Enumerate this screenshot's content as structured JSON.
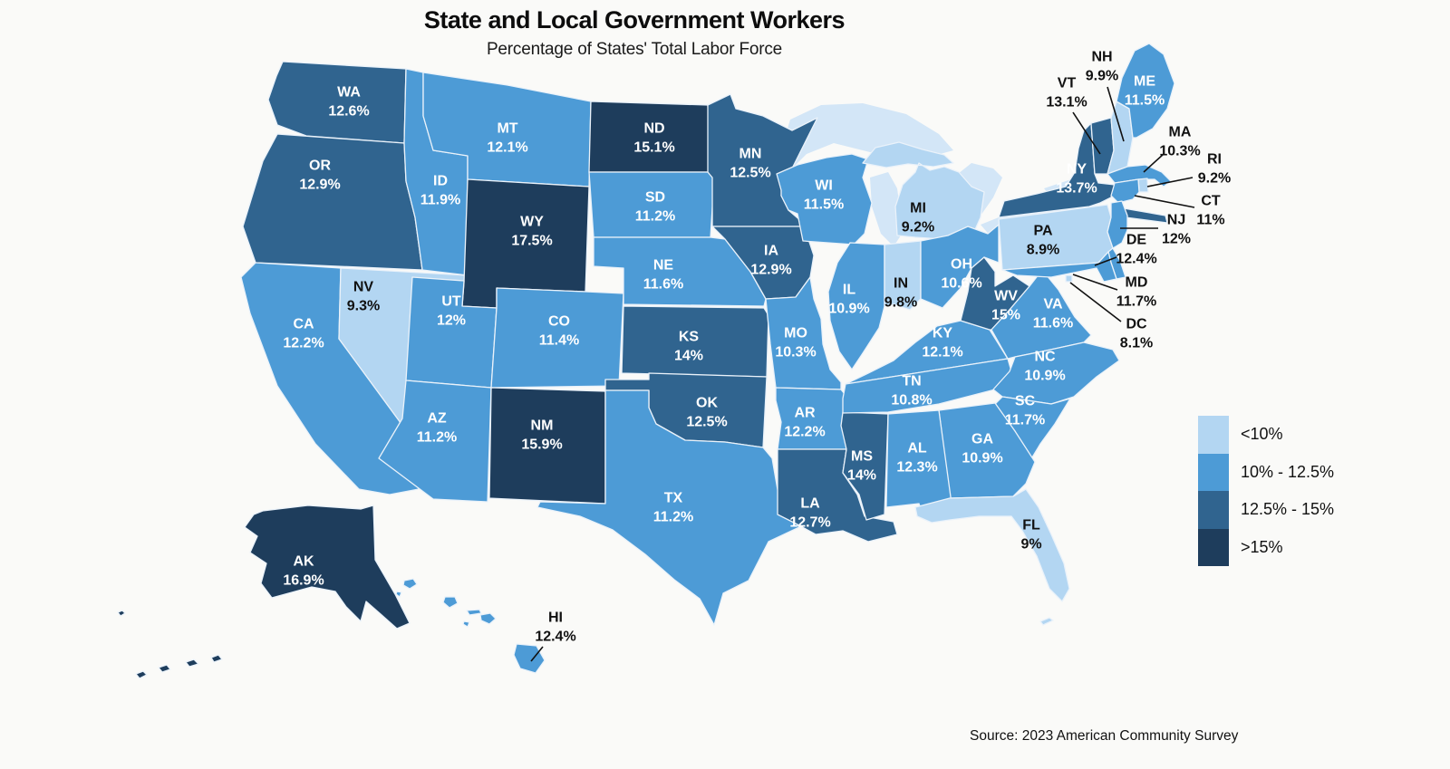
{
  "title": "State and Local Government Workers",
  "subtitle": "Percentage of States' Total Labor Force",
  "source": "Source: 2023 American Community Survey",
  "colors": {
    "background": "#FAFAF8",
    "state_border": "#EAF2FA",
    "lake": "#D3E6F7",
    "label_light": "#FFFFFF",
    "label_dark": "#111111",
    "leader_line": "#111111"
  },
  "legend": {
    "items": [
      {
        "label": "<10%",
        "color": "#B3D6F2"
      },
      {
        "label": "10% - 12.5%",
        "color": "#4D9BD6"
      },
      {
        "label": "12.5% - 15%",
        "color": "#30648F"
      },
      {
        "label": ">15%",
        "color": "#1E3D5C"
      }
    ]
  },
  "chart_data": {
    "type": "choropleth-map",
    "region": "United States",
    "value_unit": "percent of state total labor force",
    "bucket_labels": [
      "<10%",
      "10% - 12.5%",
      "12.5% - 15%",
      ">15%"
    ],
    "states": [
      {
        "code": "WA",
        "value": "12.6%",
        "bucket": 2
      },
      {
        "code": "OR",
        "value": "12.9%",
        "bucket": 2
      },
      {
        "code": "CA",
        "value": "12.2%",
        "bucket": 1
      },
      {
        "code": "NV",
        "value": "9.3%",
        "bucket": 0
      },
      {
        "code": "ID",
        "value": "11.9%",
        "bucket": 1
      },
      {
        "code": "MT",
        "value": "12.1%",
        "bucket": 1
      },
      {
        "code": "WY",
        "value": "17.5%",
        "bucket": 3
      },
      {
        "code": "UT",
        "value": "12%",
        "bucket": 1
      },
      {
        "code": "CO",
        "value": "11.4%",
        "bucket": 1
      },
      {
        "code": "AZ",
        "value": "11.2%",
        "bucket": 1
      },
      {
        "code": "NM",
        "value": "15.9%",
        "bucket": 3
      },
      {
        "code": "ND",
        "value": "15.1%",
        "bucket": 3
      },
      {
        "code": "SD",
        "value": "11.2%",
        "bucket": 1
      },
      {
        "code": "NE",
        "value": "11.6%",
        "bucket": 1
      },
      {
        "code": "KS",
        "value": "14%",
        "bucket": 2
      },
      {
        "code": "OK",
        "value": "12.5%",
        "bucket": 2
      },
      {
        "code": "TX",
        "value": "11.2%",
        "bucket": 1
      },
      {
        "code": "MN",
        "value": "12.5%",
        "bucket": 2
      },
      {
        "code": "IA",
        "value": "12.9%",
        "bucket": 2
      },
      {
        "code": "MO",
        "value": "10.3%",
        "bucket": 1
      },
      {
        "code": "AR",
        "value": "12.2%",
        "bucket": 1
      },
      {
        "code": "LA",
        "value": "12.7%",
        "bucket": 2
      },
      {
        "code": "WI",
        "value": "11.5%",
        "bucket": 1
      },
      {
        "code": "IL",
        "value": "10.9%",
        "bucket": 1
      },
      {
        "code": "MS",
        "value": "14%",
        "bucket": 2
      },
      {
        "code": "MI",
        "value": "9.2%",
        "bucket": 0
      },
      {
        "code": "IN",
        "value": "9.8%",
        "bucket": 0
      },
      {
        "code": "OH",
        "value": "10.6%",
        "bucket": 1
      },
      {
        "code": "KY",
        "value": "12.1%",
        "bucket": 1
      },
      {
        "code": "TN",
        "value": "10.8%",
        "bucket": 1
      },
      {
        "code": "WV",
        "value": "15%",
        "bucket": 2
      },
      {
        "code": "VA",
        "value": "11.6%",
        "bucket": 1
      },
      {
        "code": "NC",
        "value": "10.9%",
        "bucket": 1
      },
      {
        "code": "SC",
        "value": "11.7%",
        "bucket": 1
      },
      {
        "code": "GA",
        "value": "10.9%",
        "bucket": 1
      },
      {
        "code": "AL",
        "value": "12.3%",
        "bucket": 1
      },
      {
        "code": "FL",
        "value": "9%",
        "bucket": 0
      },
      {
        "code": "NY",
        "value": "13.7%",
        "bucket": 2
      },
      {
        "code": "PA",
        "value": "8.9%",
        "bucket": 0
      },
      {
        "code": "VT",
        "value": "13.1%",
        "bucket": 2
      },
      {
        "code": "NH",
        "value": "9.9%",
        "bucket": 0
      },
      {
        "code": "ME",
        "value": "11.5%",
        "bucket": 1
      },
      {
        "code": "MA",
        "value": "10.3%",
        "bucket": 1
      },
      {
        "code": "RI",
        "value": "9.2%",
        "bucket": 0
      },
      {
        "code": "CT",
        "value": "11%",
        "bucket": 1
      },
      {
        "code": "NJ",
        "value": "12%",
        "bucket": 1
      },
      {
        "code": "DE",
        "value": "12.4%",
        "bucket": 1
      },
      {
        "code": "MD",
        "value": "11.7%",
        "bucket": 1
      },
      {
        "code": "DC",
        "value": "8.1%",
        "bucket": 0
      },
      {
        "code": "AK",
        "value": "16.9%",
        "bucket": 3
      },
      {
        "code": "HI",
        "value": "12.4%",
        "bucket": 1
      }
    ]
  }
}
